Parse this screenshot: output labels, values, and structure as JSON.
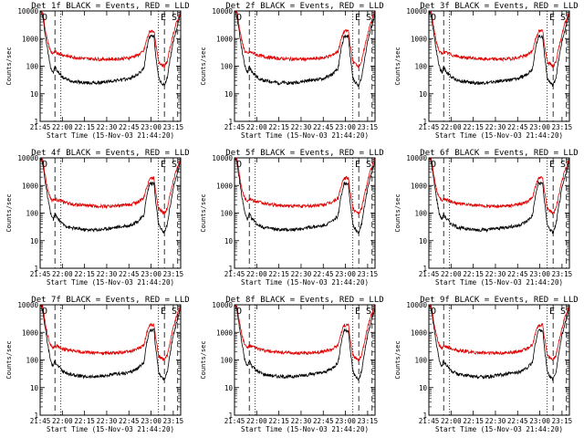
{
  "figure": {
    "panel_titles": [
      "Det 1f BLACK = Events, RED = LLD",
      "Det 2f BLACK = Events, RED = LLD",
      "Det 3f BLACK = Events, RED = LLD",
      "Det 4f BLACK = Events, RED = LLD",
      "Det 5f BLACK = Events, RED = LLD",
      "Det 6f BLACK = Events, RED = LLD",
      "Det 7f BLACK = Events, RED = LLD",
      "Det 8f BLACK = Events, RED = LLD",
      "Det 9f BLACK = Events, RED = LLD"
    ],
    "xlabel": "Start Time (15-Nov-03 21:44:20)",
    "ylabel": "Counts/sec",
    "corner_label": "E S",
    "x_ticks": [
      "21:45",
      "22:00",
      "22:15",
      "22:30",
      "22:45",
      "23:00",
      "23:15"
    ],
    "y_ticks": [
      "1",
      "10",
      "100",
      "1000",
      "10000"
    ]
  },
  "colors": {
    "events": "#000000",
    "lld": "#e00000",
    "axes": "#000000"
  },
  "chart_data": {
    "type": "line",
    "panels": 9,
    "x_unit": "minutes since 21:44:20",
    "xlim": [
      0,
      95
    ],
    "ylim": [
      1,
      10000
    ],
    "y_scale": "log",
    "dashed_markers_min": [
      10,
      84,
      93
    ],
    "dotted_markers_min": [
      14,
      80
    ],
    "series": [
      {
        "name": "Events",
        "color": "black",
        "x": [
          0,
          1,
          2,
          3,
          5,
          7,
          8,
          9,
          10,
          12,
          14,
          15,
          20,
          30,
          40,
          50,
          60,
          66,
          70,
          72,
          74,
          76,
          77,
          78,
          80,
          81,
          82,
          83,
          84,
          86,
          88,
          90,
          92,
          94,
          95
        ],
        "y": [
          10000,
          9000,
          5000,
          2000,
          400,
          100,
          70,
          60,
          95,
          60,
          50,
          40,
          30,
          25,
          25,
          30,
          35,
          50,
          80,
          400,
          1200,
          1200,
          1200,
          300,
          40,
          30,
          25,
          22,
          20,
          40,
          200,
          800,
          2000,
          5000,
          9000
        ]
      },
      {
        "name": "LLD",
        "color": "red",
        "x": [
          0,
          1,
          2,
          3,
          5,
          7,
          8,
          9,
          10,
          12,
          14,
          15,
          20,
          30,
          40,
          50,
          60,
          66,
          70,
          72,
          74,
          76,
          77,
          78,
          80,
          81,
          82,
          83,
          84,
          86,
          88,
          90,
          92,
          94,
          95
        ],
        "y": [
          10000,
          10000,
          8000,
          3000,
          800,
          350,
          300,
          280,
          330,
          300,
          280,
          260,
          220,
          190,
          180,
          180,
          200,
          250,
          350,
          900,
          1800,
          1900,
          1900,
          700,
          150,
          130,
          120,
          110,
          100,
          150,
          500,
          1500,
          3500,
          7000,
          10000
        ]
      }
    ]
  }
}
